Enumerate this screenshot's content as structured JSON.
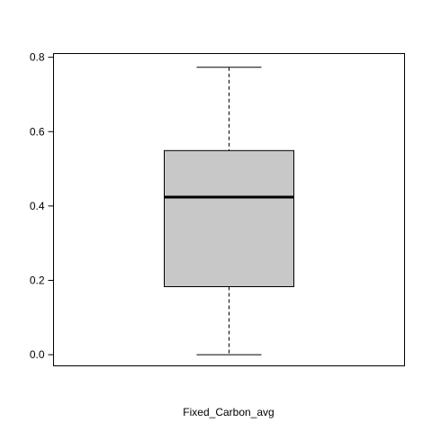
{
  "chart_data": {
    "type": "boxplot",
    "xlabel": "Fixed_Carbon_avg",
    "ylabel": "",
    "ylim": [
      -0.03,
      0.81
    ],
    "y_ticks": [
      "0.0",
      "0.2",
      "0.4",
      "0.6",
      "0.8"
    ],
    "series": [
      {
        "min": 0.0,
        "q1": 0.183,
        "median": 0.424,
        "q3": 0.549,
        "max": 0.773
      }
    ],
    "box_fill": "#c8c8c8",
    "grid": false
  }
}
